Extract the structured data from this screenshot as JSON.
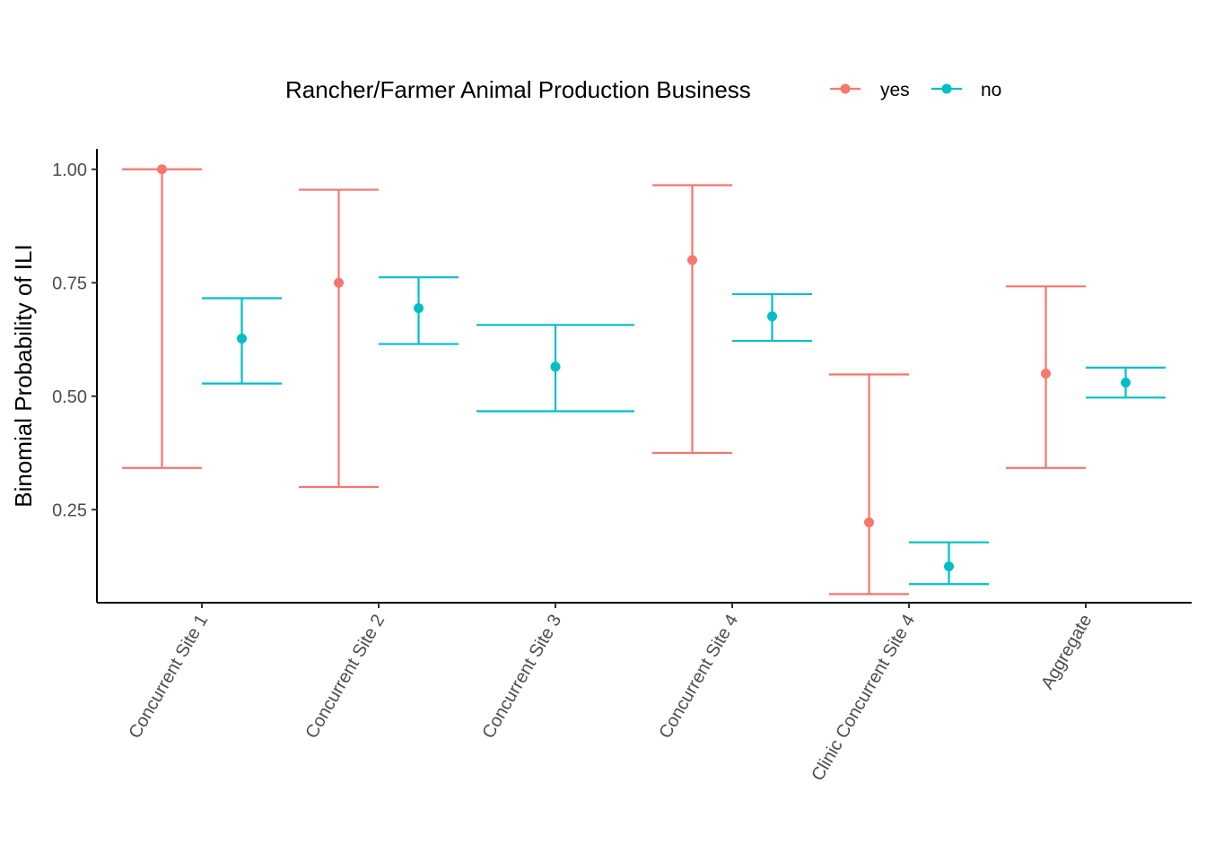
{
  "chart_data": {
    "type": "errorbar",
    "title": "",
    "xlabel": "",
    "ylabel": "Binomial Probability of ILI",
    "ylim": [
      0.045,
      1.045
    ],
    "yticks": [
      0.25,
      0.5,
      0.75,
      1.0
    ],
    "ytick_labels": [
      "0.25",
      "0.50",
      "0.75",
      "1.00"
    ],
    "categories": [
      "Concurrent Site 1",
      "Concurrent Site 2",
      "Concurrent Site 3",
      "Concurrent Site 4",
      "Clinic Concurrent Site 4",
      "Aggregate"
    ],
    "legend": {
      "title": "Rancher/Farmer Animal Production Business",
      "position": "top"
    },
    "grid": false,
    "series": [
      {
        "name": "yes",
        "color": "#F8766D",
        "points": [
          {
            "category": "Concurrent Site 1",
            "value": 1.0,
            "lower": 0.342,
            "upper": 1.0
          },
          {
            "category": "Concurrent Site 2",
            "value": 0.75,
            "lower": 0.3,
            "upper": 0.955
          },
          {
            "category": "Concurrent Site 4",
            "value": 0.8,
            "lower": 0.375,
            "upper": 0.965
          },
          {
            "category": "Clinic Concurrent Site 4",
            "value": 0.222,
            "lower": 0.064,
            "upper": 0.548
          },
          {
            "category": "Aggregate",
            "value": 0.55,
            "lower": 0.342,
            "upper": 0.742
          }
        ]
      },
      {
        "name": "no",
        "color": "#00BFC4",
        "points": [
          {
            "category": "Concurrent Site 1",
            "value": 0.627,
            "lower": 0.528,
            "upper": 0.716
          },
          {
            "category": "Concurrent Site 2",
            "value": 0.694,
            "lower": 0.615,
            "upper": 0.762
          },
          {
            "category": "Concurrent Site 3",
            "value": 0.565,
            "lower": 0.467,
            "upper": 0.657
          },
          {
            "category": "Concurrent Site 4",
            "value": 0.676,
            "lower": 0.622,
            "upper": 0.725
          },
          {
            "category": "Clinic Concurrent Site 4",
            "value": 0.125,
            "lower": 0.086,
            "upper": 0.178
          },
          {
            "category": "Aggregate",
            "value": 0.53,
            "lower": 0.497,
            "upper": 0.563
          }
        ]
      }
    ]
  }
}
